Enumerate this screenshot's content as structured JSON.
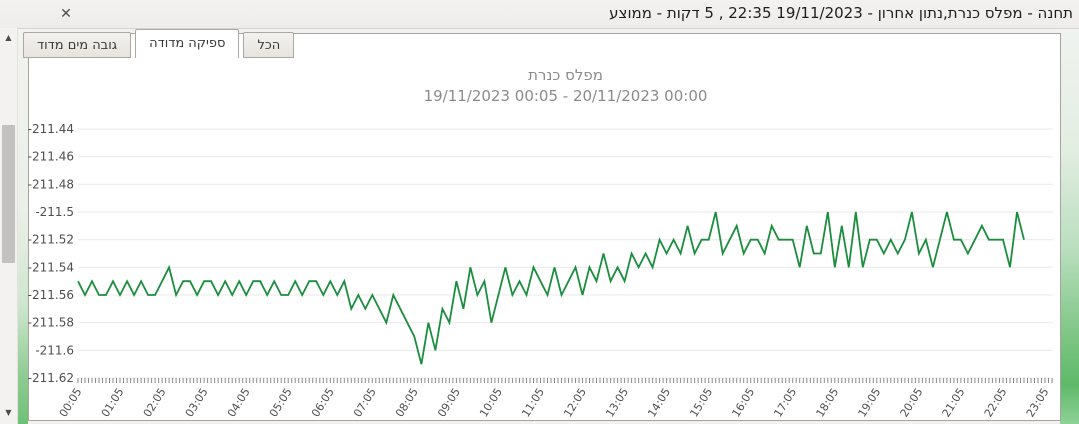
{
  "window": {
    "title": "תחנה - מפלס כנרת,נתון אחרון - 19/11/2023 22:35 , 5 דקות - ממוצע",
    "close_glyph": "✕"
  },
  "scrollbar": {
    "up_glyph": "▲",
    "down_glyph": "▼"
  },
  "tabs": [
    {
      "label": "גובה מים מדוד",
      "selected": false
    },
    {
      "label": "ספיקה מדודה",
      "selected": true
    },
    {
      "label": "הכל",
      "selected": false
    }
  ],
  "chart_data": {
    "type": "line",
    "title": "מפלס כנרת",
    "subtitle": "19/11/2023 00:05 - 20/11/2023 00:00",
    "series_name": "מפלס כנרת",
    "line_color": "#1b8e3e",
    "grid_color": "#e9e9e9",
    "tick_color": "#8a8a8a",
    "axis_label_color": "#4f4f4f",
    "grid": true,
    "legend": "none",
    "ylabel": "",
    "xlabel": "",
    "ylim": [
      -211.62,
      -211.44
    ],
    "y_tick_labels": [
      "-211.44",
      "-211.46",
      "-211.48",
      "-211.5",
      "-211.52",
      "-211.54",
      "-211.56",
      "-211.58",
      "-211.6",
      "-211.62"
    ],
    "x_tick_labels": [
      "00:05",
      "01:05",
      "02:05",
      "03:05",
      "04:05",
      "05:05",
      "06:05",
      "07:05",
      "08:05",
      "09:05",
      "10:05",
      "11:05",
      "12:05",
      "13:05",
      "14:05",
      "15:05",
      "16:05",
      "17:05",
      "18:05",
      "19:05",
      "20:05",
      "21:05",
      "22:05",
      "23:05"
    ],
    "x_tick_interval_minutes": 60,
    "x_total_minutes": 1380,
    "x_minor_tick_minutes": 5,
    "start_time": "00:05",
    "end_time": "22:35",
    "step_minutes": 10,
    "values": [
      -211.55,
      -211.56,
      -211.55,
      -211.56,
      -211.56,
      -211.55,
      -211.56,
      -211.55,
      -211.56,
      -211.55,
      -211.56,
      -211.56,
      -211.55,
      -211.54,
      -211.56,
      -211.55,
      -211.55,
      -211.56,
      -211.55,
      -211.55,
      -211.56,
      -211.55,
      -211.56,
      -211.55,
      -211.56,
      -211.55,
      -211.55,
      -211.56,
      -211.55,
      -211.56,
      -211.56,
      -211.55,
      -211.56,
      -211.55,
      -211.55,
      -211.56,
      -211.55,
      -211.56,
      -211.55,
      -211.57,
      -211.56,
      -211.57,
      -211.56,
      -211.57,
      -211.58,
      -211.56,
      -211.57,
      -211.58,
      -211.59,
      -211.61,
      -211.58,
      -211.6,
      -211.57,
      -211.58,
      -211.55,
      -211.57,
      -211.54,
      -211.56,
      -211.55,
      -211.58,
      -211.56,
      -211.54,
      -211.56,
      -211.55,
      -211.56,
      -211.54,
      -211.55,
      -211.56,
      -211.54,
      -211.56,
      -211.55,
      -211.54,
      -211.56,
      -211.54,
      -211.55,
      -211.53,
      -211.55,
      -211.54,
      -211.55,
      -211.53,
      -211.54,
      -211.53,
      -211.54,
      -211.52,
      -211.53,
      -211.52,
      -211.53,
      -211.51,
      -211.53,
      -211.52,
      -211.52,
      -211.5,
      -211.53,
      -211.52,
      -211.51,
      -211.53,
      -211.52,
      -211.52,
      -211.53,
      -211.51,
      -211.52,
      -211.52,
      -211.52,
      -211.54,
      -211.51,
      -211.53,
      -211.53,
      -211.5,
      -211.54,
      -211.51,
      -211.54,
      -211.5,
      -211.54,
      -211.52,
      -211.52,
      -211.53,
      -211.52,
      -211.53,
      -211.52,
      -211.5,
      -211.53,
      -211.52,
      -211.54,
      -211.52,
      -211.5,
      -211.52,
      -211.52,
      -211.53,
      -211.52,
      -211.51,
      -211.52,
      -211.52,
      -211.52,
      -211.54,
      -211.5,
      -211.52
    ]
  }
}
